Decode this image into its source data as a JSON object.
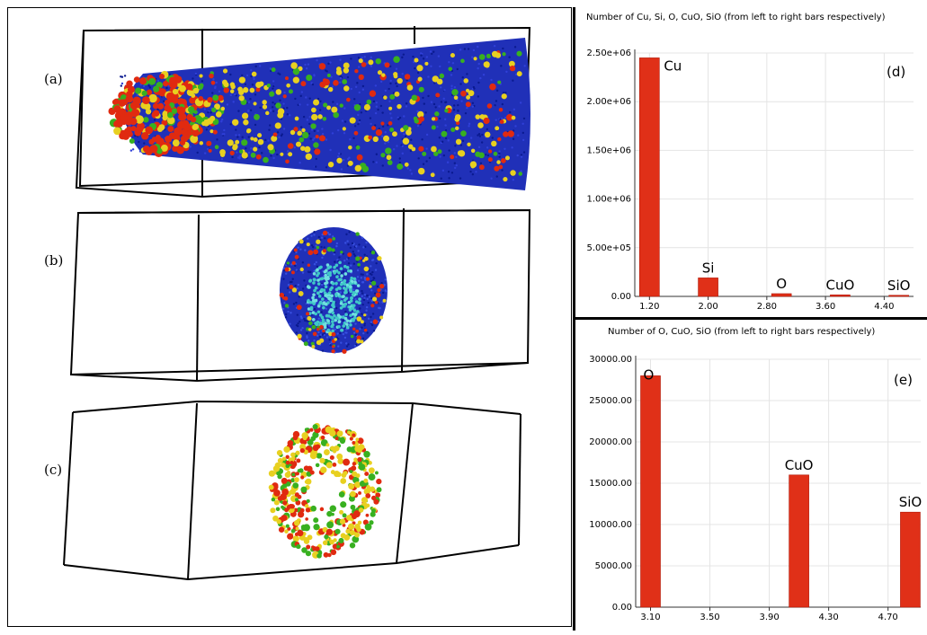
{
  "panels": {
    "a": {
      "label": "(a)"
    },
    "b": {
      "label": "(b)"
    },
    "c": {
      "label": "(c)"
    }
  },
  "colors": {
    "cu": "#2030b8",
    "si": "#e02a10",
    "o": "#e8d020",
    "cuo": "#38b020",
    "sio": "#40c8c8",
    "bar": "#e03018"
  },
  "chart_data": [
    {
      "type": "bar",
      "panel_label": "(d)",
      "title": "Number of Cu, Si, O, CuO, SiO (from left to right bars respectively)",
      "x": [
        1.2,
        2.0,
        3.0,
        3.8,
        4.6
      ],
      "values": [
        2450000,
        190000,
        28000,
        16000,
        11500
      ],
      "bar_labels": [
        "Cu",
        "Si",
        "O",
        "CuO",
        "SiO"
      ],
      "xticks": [
        1.2,
        2.0,
        2.8,
        3.6,
        4.4
      ],
      "xtick_labels": [
        "1.20",
        "2.00",
        "2.80",
        "3.60",
        "4.40"
      ],
      "xlim": [
        1.0,
        4.8
      ],
      "yticks": [
        0,
        500000,
        1000000,
        1500000,
        2000000,
        2500000
      ],
      "ytick_labels": [
        "0.00",
        "5.00e+05",
        "1.00e+06",
        "1.50e+06",
        "2.00e+06",
        "2.50e+06"
      ],
      "ylim": [
        0,
        2500000
      ],
      "grid": true
    },
    {
      "type": "bar",
      "panel_label": "(e)",
      "title": "Number of O, CuO, SiO (from left to right bars respectively)",
      "x": [
        3.1,
        4.1,
        4.85
      ],
      "values": [
        28000,
        16000,
        11500
      ],
      "bar_labels": [
        "O",
        "CuO",
        "SiO"
      ],
      "xticks": [
        3.1,
        3.5,
        3.9,
        4.3,
        4.7
      ],
      "xtick_labels": [
        "3.10",
        "3.50",
        "3.90",
        "4.30",
        "4.70"
      ],
      "xlim": [
        3.0,
        4.92
      ],
      "yticks": [
        0,
        5000,
        10000,
        15000,
        20000,
        25000,
        30000
      ],
      "ytick_labels": [
        "0.00",
        "5000.00",
        "10000.00",
        "15000.00",
        "20000.00",
        "25000.00",
        "30000.00"
      ],
      "ylim": [
        0,
        30000
      ],
      "grid": true
    }
  ]
}
